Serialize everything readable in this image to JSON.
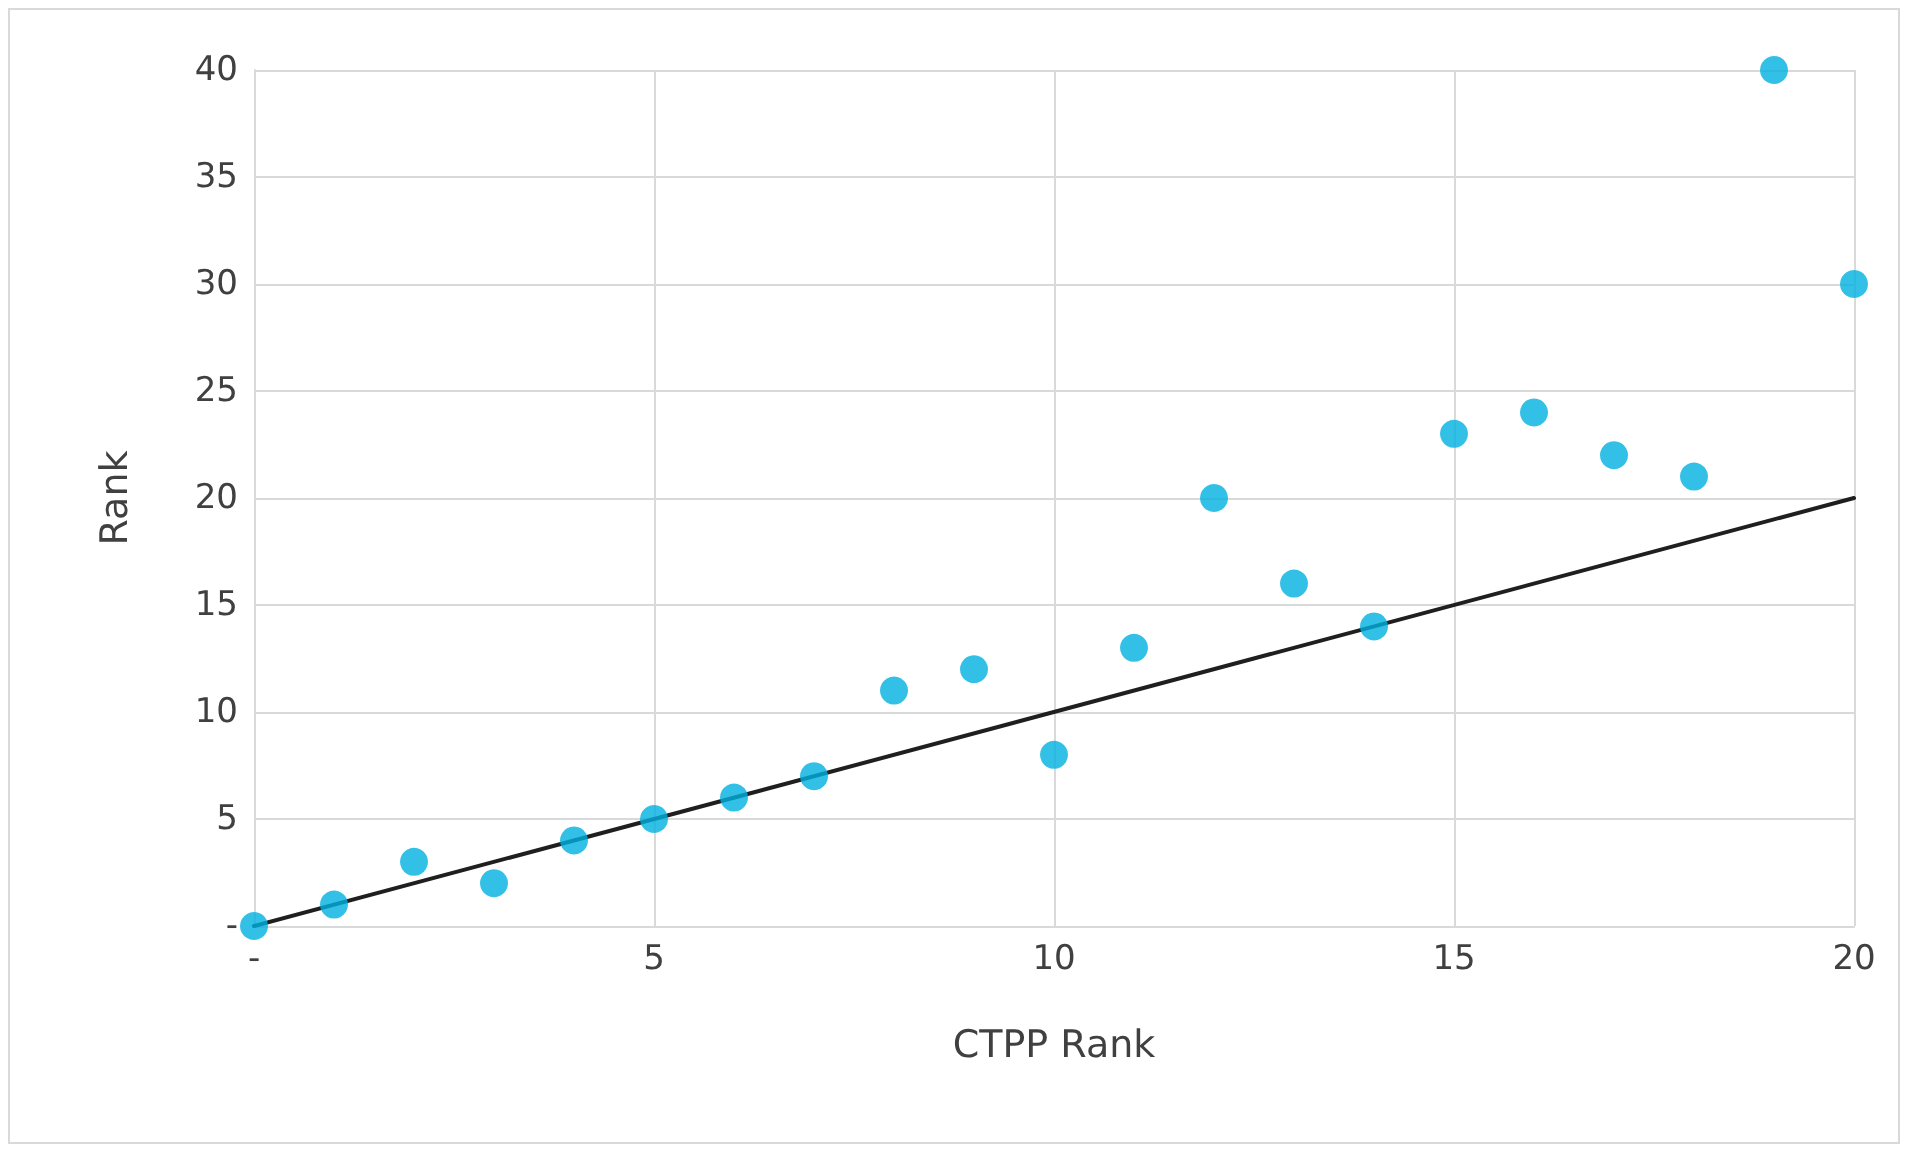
{
  "chart_data": {
    "type": "scatter",
    "xlabel": "CTPP Rank",
    "ylabel": "Rank",
    "x": [
      0,
      1,
      2,
      3,
      4,
      5,
      6,
      7,
      8,
      9,
      10,
      11,
      12,
      13,
      14,
      15,
      16,
      17,
      18,
      19,
      20
    ],
    "series": [
      {
        "color": "#00b0e0",
        "marker": "circle",
        "values": [
          0,
          1,
          3,
          2,
          4,
          5,
          6,
          7,
          11,
          12,
          8,
          13,
          20,
          16,
          14,
          23,
          24,
          22,
          21,
          40,
          30
        ]
      },
      {
        "type": "line",
        "color": "#1f1f1f",
        "marker": "none",
        "line_style": "solid",
        "x": [
          0,
          20
        ],
        "values": [
          0,
          20
        ]
      }
    ],
    "xlim": [
      0,
      20
    ],
    "ylim": [
      0,
      40
    ],
    "xticks": [
      {
        "value": 0,
        "label": "-"
      },
      5,
      10,
      15,
      20
    ],
    "yticks": [
      {
        "value": 0,
        "label": "-"
      },
      5,
      10,
      15,
      20,
      25,
      30,
      35,
      40
    ],
    "grid": true
  }
}
